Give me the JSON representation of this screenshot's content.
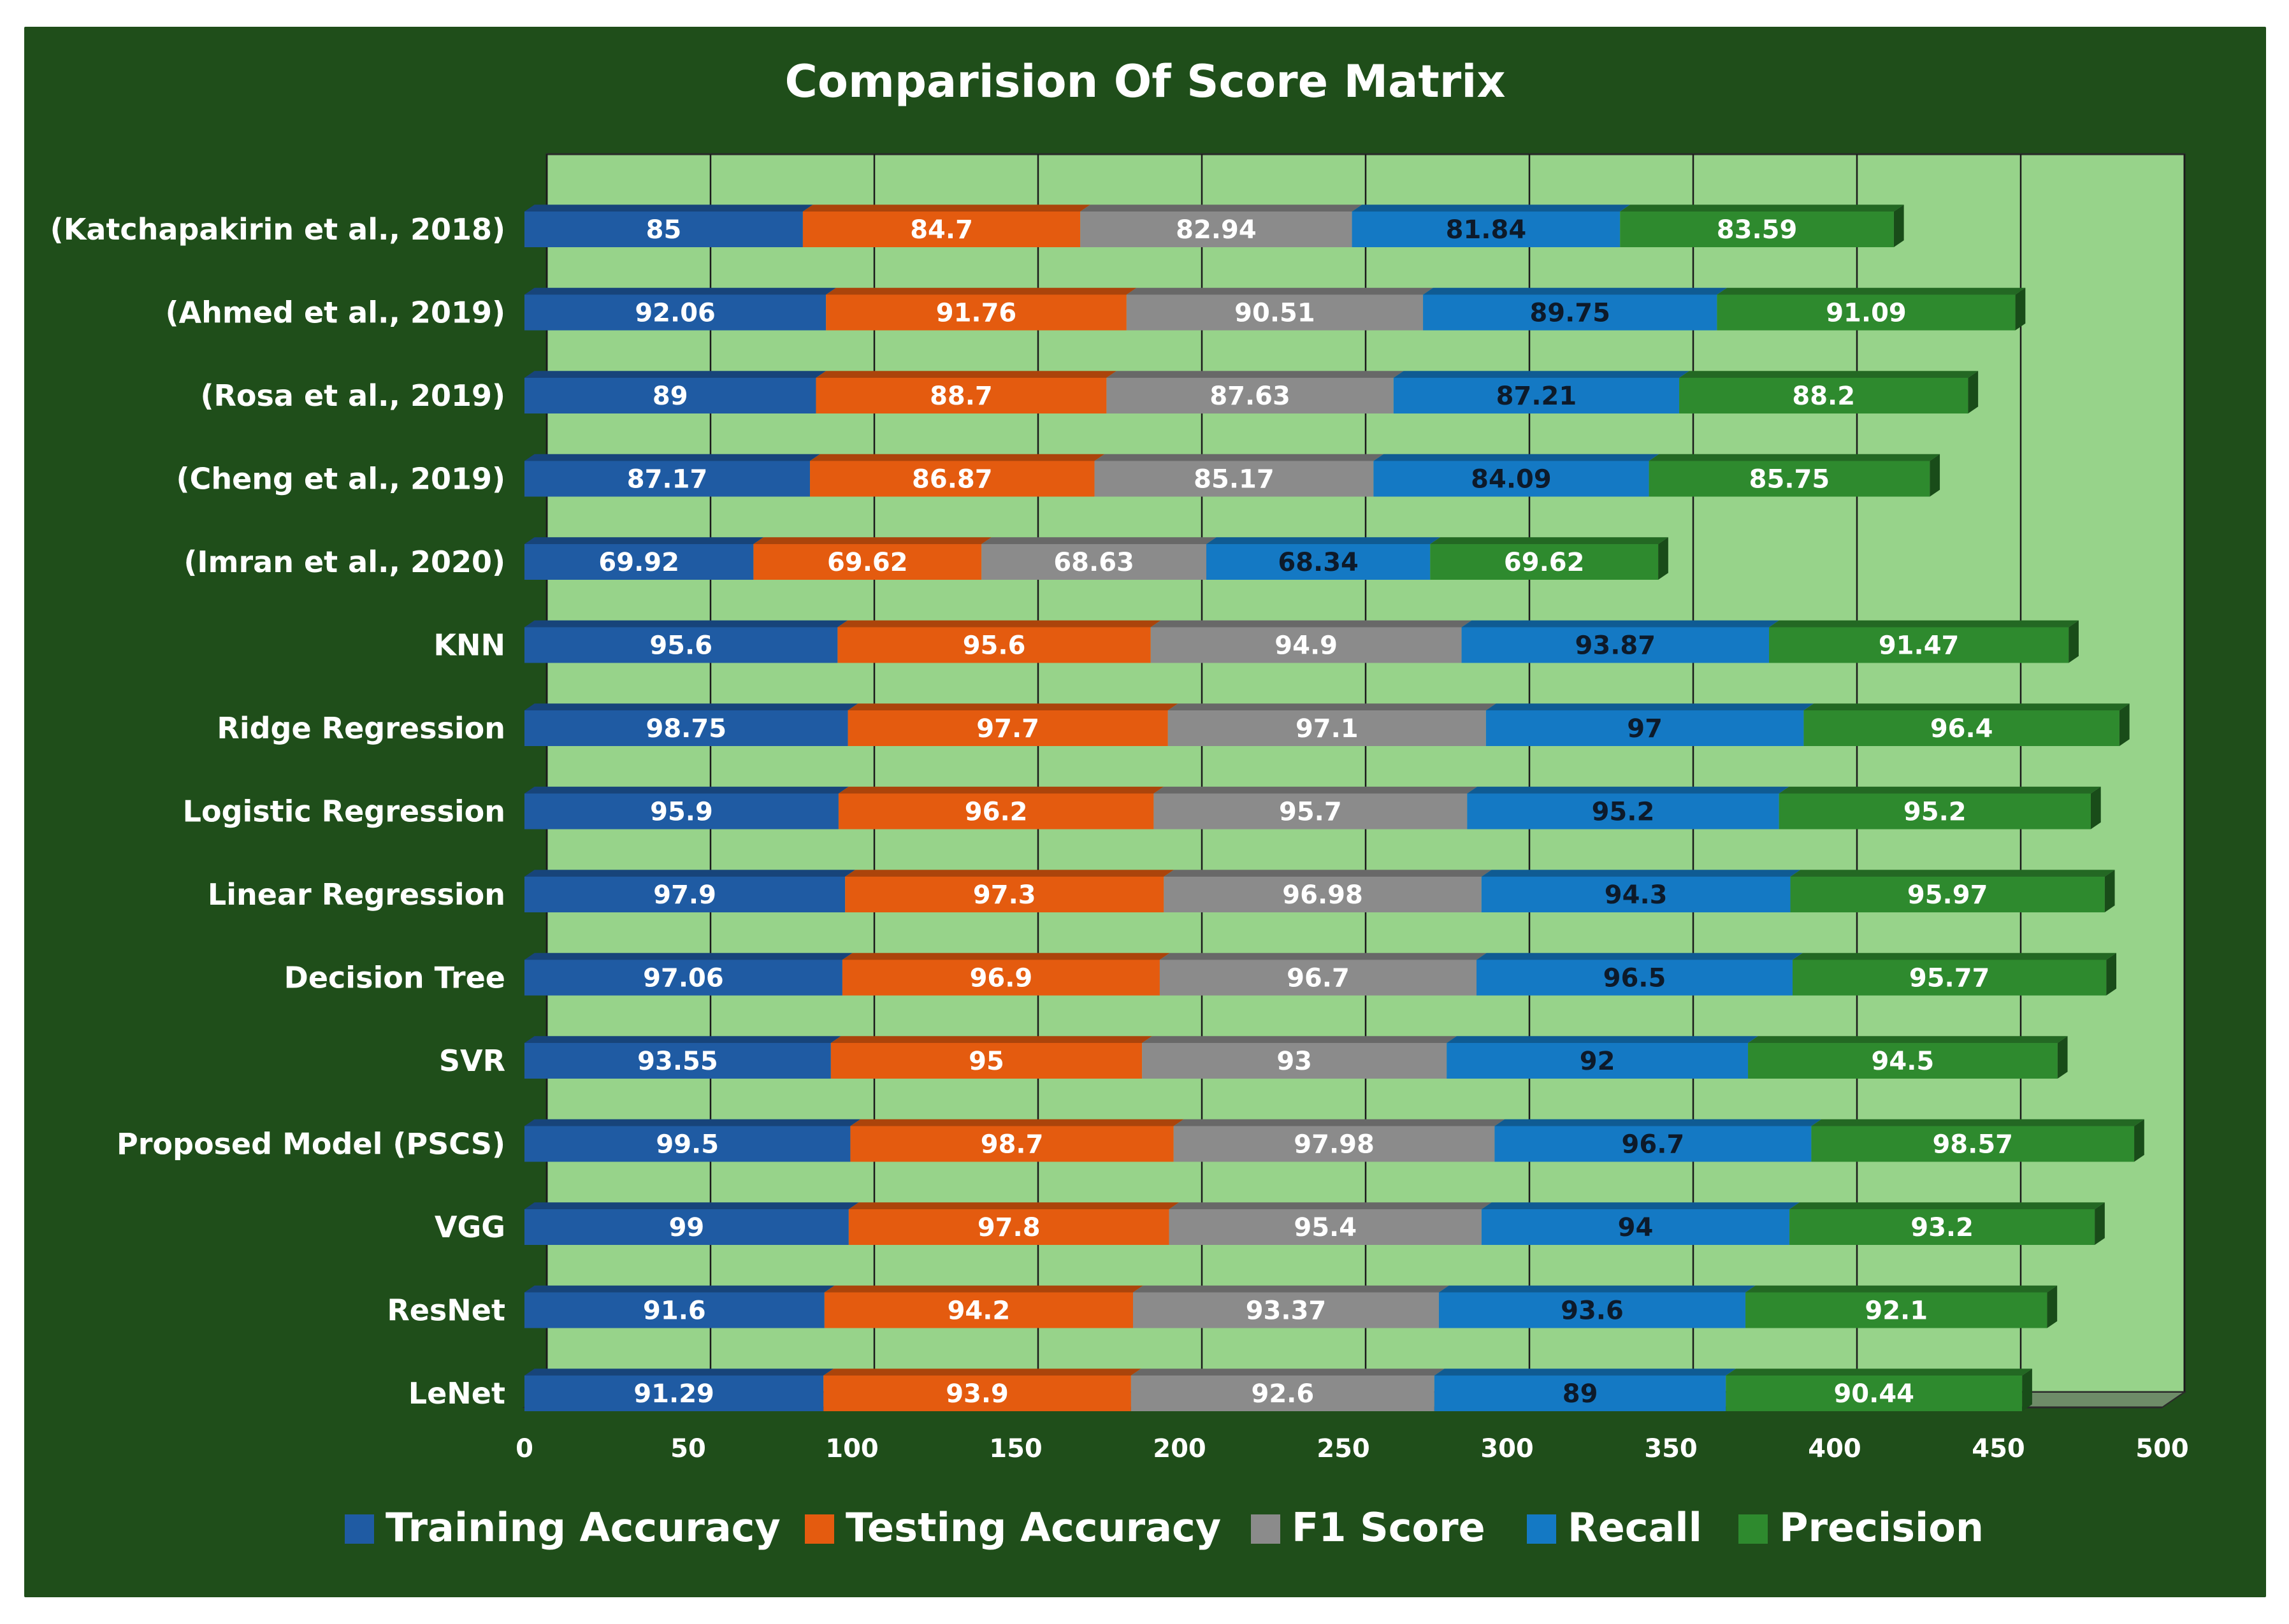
{
  "chart_data": {
    "type": "bar",
    "orientation": "horizontal",
    "stacked": true,
    "title": "Comparision Of Score Matrix",
    "xlabel": "",
    "ylabel": "",
    "xlim": [
      0,
      500
    ],
    "x_ticks": [
      "0",
      "50",
      "100",
      "150",
      "200",
      "250",
      "300",
      "350",
      "400",
      "450",
      "500"
    ],
    "categories": [
      "(Katchapakirin et al.,  2018)",
      "(Ahmed et al., 2019)",
      "(Rosa et al., 2019)",
      "(Cheng et al., 2019)",
      "(Imran et al., 2020)",
      "KNN",
      "Ridge Regression",
      "Logistic Regression",
      "Linear Regression",
      "Decision Tree",
      "SVR",
      "Proposed Model (PSCS)",
      "VGG",
      "ResNet",
      "LeNet"
    ],
    "series": [
      {
        "name": "Training Accuracy",
        "color": "#1f5ba3",
        "label_color": "#ffffff",
        "values": [
          85,
          92.06,
          89,
          87.17,
          69.92,
          95.6,
          98.75,
          95.9,
          97.9,
          97.06,
          93.55,
          99.5,
          99,
          91.6,
          91.29
        ],
        "labels": [
          "85",
          "92.06",
          "89",
          "87.17",
          "69.92",
          "95.6",
          "98.75",
          "95.9",
          "97.9",
          "97.06",
          "93.55",
          "99.5",
          "99",
          "91.6",
          "91.29"
        ]
      },
      {
        "name": "Testing Accuracy",
        "color": "#e45b0f",
        "label_color": "#ffffff",
        "values": [
          84.7,
          91.76,
          88.7,
          86.87,
          69.62,
          95.6,
          97.7,
          96.2,
          97.3,
          96.9,
          95,
          98.7,
          97.8,
          94.2,
          93.9
        ],
        "labels": [
          "84.7",
          "91.76",
          "88.7",
          "86.87",
          "69.62",
          "95.6",
          "97.7",
          "96.2",
          "97.3",
          "96.9",
          "95",
          "98.7",
          "97.8",
          "94.2",
          "93.9"
        ]
      },
      {
        "name": "F1 Score",
        "color": "#8b8b8b",
        "label_color": "#ffffff",
        "values": [
          82.94,
          90.51,
          87.63,
          85.17,
          68.63,
          94.9,
          97.1,
          95.7,
          96.98,
          96.7,
          93,
          97.98,
          95.4,
          93.37,
          92.6
        ],
        "labels": [
          "82.94",
          "90.51",
          "87.63",
          "85.17",
          "68.63",
          "94.9",
          "97.1",
          "95.7",
          "96.98",
          "96.7",
          "93",
          "97.98",
          "95.4",
          "93.37",
          "92.6"
        ]
      },
      {
        "name": "Recall",
        "color": "#1479c4",
        "label_color": "#0d1a2a",
        "values": [
          81.84,
          89.75,
          87.21,
          84.09,
          68.34,
          93.87,
          97,
          95.2,
          94.3,
          96.5,
          92,
          96.7,
          94,
          93.6,
          89
        ],
        "labels": [
          "81.84",
          "89.75",
          "87.21",
          "84.09",
          "68.34",
          "93.87",
          "97",
          "95.2",
          "94.3",
          "96.5",
          "92",
          "96.7",
          "94",
          "93.6",
          "89"
        ]
      },
      {
        "name": "Precision",
        "color": "#2e8a2e",
        "label_color": "#ffffff",
        "values": [
          83.59,
          91.09,
          88.2,
          85.75,
          69.62,
          91.47,
          96.4,
          95.2,
          95.97,
          95.77,
          94.5,
          98.57,
          93.2,
          92.1,
          90.44
        ],
        "labels": [
          "83.59",
          "91.09",
          "88.2",
          "85.75",
          "69.62",
          "91.47",
          "96.4",
          "95.2",
          "95.97",
          "95.77",
          "94.5",
          "98.57",
          "93.2",
          "92.1",
          "90.44"
        ]
      }
    ],
    "legend_position": "bottom",
    "grid": true,
    "colors": {
      "frame_background": "#1f4e1a",
      "plot_background": "#97d38a",
      "grid_line": "#1a1a1a",
      "floor": "#6e8c68",
      "text": "#ffffff"
    }
  }
}
